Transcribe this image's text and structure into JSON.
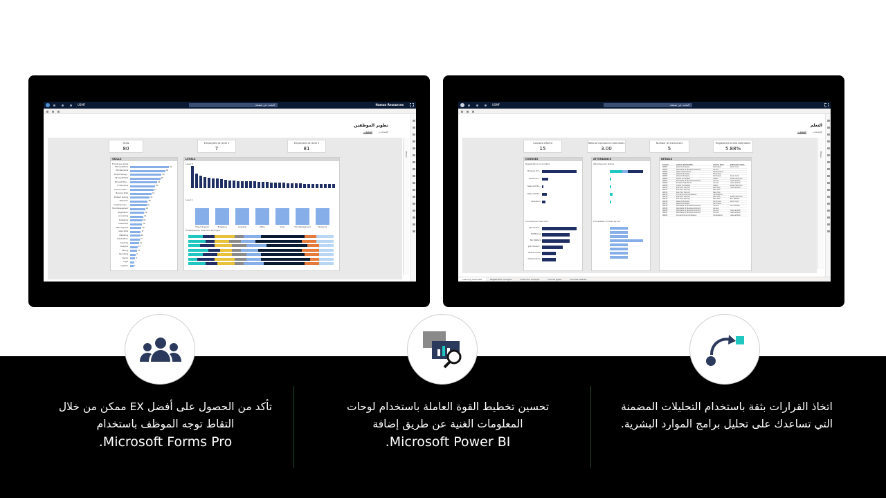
{
  "colors": {
    "band": "#000000",
    "accent_teal": "#1fc7c0",
    "icon_navy": "#2b3a5c",
    "bar_light": "#86aee8",
    "bar_dark": "#1f2e63"
  },
  "left_screen": {
    "topbar": {
      "comp_label": "USMF",
      "search_placeholder": "البحث عن صفحة",
      "app_title": "Human Resources"
    },
    "heading": "تطوير الموظفين",
    "tabs": [
      "التحليلات",
      "الإعدادات"
    ],
    "filters_label": "Filters",
    "kpis": [
      {
        "label": "Skills",
        "value": "80"
      },
      {
        "label": "Employees at level 1",
        "value": "7"
      },
      {
        "label": "Employees at level 5",
        "value": "81"
      }
    ],
    "skills_panel": {
      "title": "SKILLS",
      "subtitle": "Employee skills",
      "bars": [
        {
          "label": "Microsoft Excel",
          "value": 62
        },
        {
          "label": "PMI Standards",
          "value": 56
        },
        {
          "label": "Project Manag...",
          "value": 50
        },
        {
          "label": "Microsoft Word",
          "value": 48
        },
        {
          "label": "Microsoft Proj...",
          "value": 43
        },
        {
          "label": "IT Standards",
          "value": 40
        },
        {
          "label": "Communicatio...",
          "value": 37
        },
        {
          "label": "Planning Skills",
          "value": 34
        },
        {
          "label": "Problem Solving",
          "value": 31
        },
        {
          "label": "Teamwork",
          "value": 28
        },
        {
          "label": "Customer Serv...",
          "value": 26
        },
        {
          "label": "Time Management",
          "value": 24
        },
        {
          "label": "Negotiation",
          "value": 22
        },
        {
          "label": "Accounting",
          "value": 21
        },
        {
          "label": "Budgeting",
          "value": 20
        },
        {
          "label": "Leadership",
          "value": 19
        },
        {
          "label": "Office Support",
          "value": 18
        },
        {
          "label": "Sales Skills",
          "value": 17
        },
        {
          "label": "Marketing",
          "value": 16
        },
        {
          "label": "Presentation",
          "value": 15
        },
        {
          "label": "Coaching",
          "value": 14
        },
        {
          "label": "Analytics",
          "value": 12
        },
        {
          "label": "Writing",
          "value": 11
        },
        {
          "label": "Recruiting",
          "value": 9
        },
        {
          "label": "Payroll",
          "value": 8
        },
        {
          "label": "Legal",
          "value": 7
        },
        {
          "label": "Logistics",
          "value": 5
        }
      ]
    },
    "levels_panel": {
      "title": "LEVELS",
      "level5_label": "Level 5",
      "level1_label": "Level 1",
      "level5_bars": [
        40,
        26,
        22,
        20,
        19,
        18,
        17,
        16,
        15,
        14,
        14,
        13,
        13,
        12,
        12,
        12,
        11,
        11,
        11,
        10,
        10,
        10,
        10,
        9,
        9,
        9,
        9,
        8,
        8,
        8,
        8,
        8,
        7,
        7,
        7
      ],
      "level1_bars": [
        1,
        1,
        1,
        1,
        1,
        1,
        1
      ],
      "level1_categories": [
        "Project Support",
        "Budgeting",
        "Analytical",
        "Office",
        "Sales",
        "Time Management",
        "Teamwork"
      ],
      "stack_title": "Employees by level and skill type"
    },
    "footer_tabs": [],
    "status_text": ""
  },
  "right_screen": {
    "topbar": {
      "comp_label": "USMF",
      "search_placeholder": "البحث عن صفحة"
    },
    "heading": "التعلم",
    "tabs": [
      "التحليلات",
      "الإعدادات"
    ],
    "filters_label": "Filters",
    "kpis": [
      {
        "label": "Courses offered",
        "value": "15"
      },
      {
        "label": "Ratio of courses to instructors",
        "value": "3.00"
      },
      {
        "label": "Number of instructors",
        "value": "5"
      },
      {
        "label": "Registered to test attendees",
        "value": "5.88%"
      }
    ],
    "courses_panel": {
      "title": "COURSES",
      "sub1": "Registration by location",
      "sub2": "Courses per instructor",
      "loc_bars": [
        {
          "label": "Business Sch...",
          "value": 22
        },
        {
          "label": "Health and ...",
          "value": 4
        },
        {
          "label": "Sales and Ma...",
          "value": 1
        },
        {
          "label": "Sales and Ma...",
          "value": 3
        },
        {
          "label": "Operations",
          "value": 2
        }
      ],
      "inst_bars": [
        {
          "label": "Julia Funder...",
          "value": 5
        },
        {
          "label": "Bill Malone",
          "value": 4
        },
        {
          "label": "Ben Walters",
          "value": 4
        },
        {
          "label": "Jodi Christen...",
          "value": 3
        },
        {
          "label": "Brenda Turner",
          "value": 2
        },
        {
          "label": "Charlie Carson",
          "value": 2
        }
      ]
    },
    "attendance_panel": {
      "title": "ATTENDANCE",
      "sub1": "Attendees by status",
      "sub2": "Completed courses by job",
      "status_legend": [
        "Completed",
        "Enrolled",
        "Cancelled",
        "Registered"
      ]
    },
    "details_panel": {
      "title": "DETAILS",
      "columns": [
        "Course",
        "Course description",
        "Course type",
        "Instructor name"
      ],
      "rows": [
        [
          "00001",
          "Sales techniques",
          "Technique",
          "Kevin Cook"
        ],
        [
          "00002",
          "Standards of Business Conduct",
          "Annual",
          ""
        ],
        [
          "00003",
          "Sales performance",
          "Performance",
          ""
        ],
        [
          "00004",
          "Sales techniques",
          "Technique",
          ""
        ],
        [
          "00005",
          "Sales techniques",
          "Technique",
          "Kevin Cook"
        ],
        [
          "00006",
          "Health and Safety",
          "Safety",
          "Sheila Sherman"
        ],
        [
          "00007",
          "Standards of Business Conduct",
          "Annual",
          "Luke Lehman"
        ],
        [
          "00008",
          "Business Standards",
          "Annual",
          "Luke Lehman"
        ],
        [
          "00009",
          "Health and Safety",
          "Safety",
          "Sheila Sherman"
        ],
        [
          "00010",
          "New Hire Training",
          "New Hire",
          "Luke Lehman"
        ],
        [
          "00011",
          "New Hire Training",
          "New Hire",
          ""
        ],
        [
          "00012",
          "New Hire Training",
          "New Hire",
          ""
        ],
        [
          "00013",
          "Annual online compliance",
          "Compliance",
          ""
        ],
        [
          "00014",
          "New Hire Training",
          "New Hire",
          "Sheila Sherman"
        ],
        [
          "00015",
          "New Hire Training",
          "New Hire",
          "Ben Walters"
        ],
        [
          "00016",
          "Sales techniques",
          "Technique",
          "Kevin Cook"
        ],
        [
          "00017",
          "Sales techniques",
          "Technique",
          ""
        ],
        [
          "00018",
          "Standards of Business Conduct",
          "Annual",
          "Jodi Christen"
        ],
        [
          "00019",
          "Standards of Business Conduct",
          "Annual",
          ""
        ],
        [
          "00020",
          "Standards of Business Conduct",
          "Annual",
          "Luke Lehman"
        ],
        [
          "00021",
          "Standards of Business Conduct",
          "Annual",
          "Luke Lehman"
        ],
        [
          "00022",
          "Annual online compliance",
          "Compliance",
          "Luke Lehman"
        ]
      ]
    },
    "footer_tabs": [
      "Learning Overview",
      "Registration Analysis",
      "Instructor Analysis",
      "Course Types",
      "Courses Offered"
    ]
  },
  "features": [
    {
      "icon": "decision-arrow-icon",
      "text": "اتخاذ القرارات بثقة باستخدام التحليلات المضمنة التي تساعدك على تحليل برامج الموارد البشرية.",
      "brand": ""
    },
    {
      "icon": "dashboard-search-icon",
      "text": "تحسين تخطيط القوة العاملة باستخدام لوحات المعلومات الغنية عن طريق إضافة",
      "brand": "Microsoft Power BI."
    },
    {
      "icon": "people-group-icon",
      "text": "تأكد من الحصول على أفضل EX ممكن من خلال التقاط توجه الموظف باستخدام",
      "brand": "Microsoft Forms Pro."
    }
  ]
}
